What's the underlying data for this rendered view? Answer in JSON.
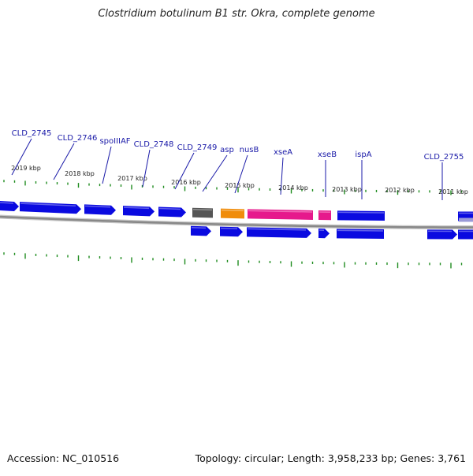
{
  "title": "Clostridium botulinum B1 str. Okra, complete genome",
  "footer": {
    "accession": "Accession: NC_010516",
    "summary": "Topology: circular; Length: 3,958,233 bp; Genes: 3,761"
  },
  "scale_labels": [
    "2019 kbp",
    "2018 kbp",
    "2017 kbp",
    "2016 kbp",
    "2015 kbp",
    "2014 kbp",
    "2013 kbp",
    "2012 kbp",
    "2011 kbp"
  ],
  "gene_labels": [
    "CLD_2745",
    "CLD_2746",
    "spoIIIAF",
    "CLD_2748",
    "CLD_2749",
    "asp",
    "nusB",
    "xseA",
    "xseB",
    "ispA",
    "CLD_2755"
  ],
  "colors": {
    "gene_blue": "#0a0ae0",
    "gene_pink": "#e6198c",
    "gene_orange": "#f08c0a",
    "gene_gray": "#555555",
    "tick_green": "#1e8c1e",
    "label_blue": "#1a1aa8",
    "backbone_gray": "#888888"
  }
}
